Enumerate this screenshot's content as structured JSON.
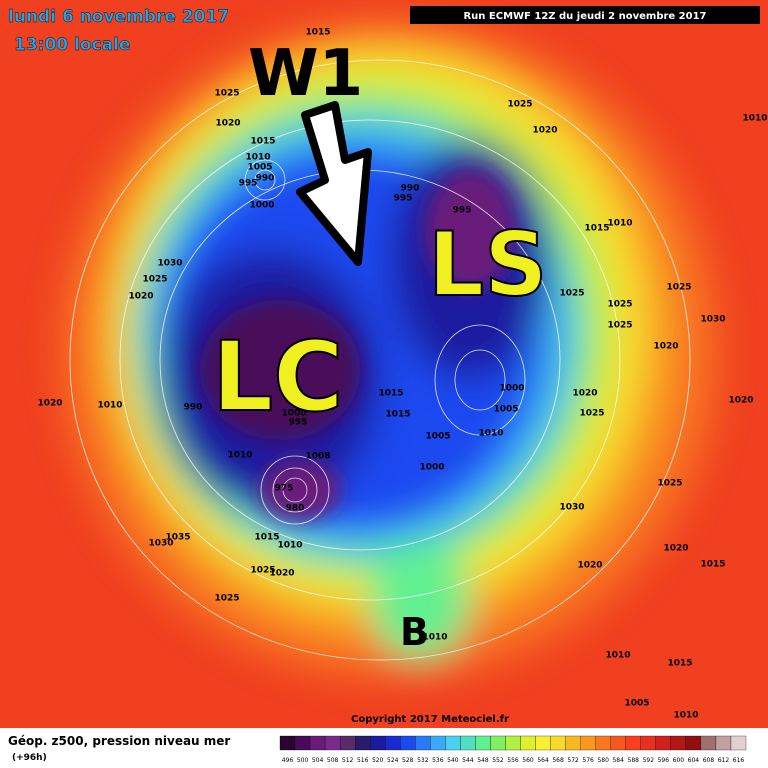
{
  "header": {
    "date": "lundi 6 novembre 2017",
    "time": "13:00 locale",
    "run": "Run ECMWF 12Z du jeudi 2 novembre 2017"
  },
  "annotations": {
    "arrow_label": "W1",
    "ls": "LS",
    "lc": "LC",
    "b": "B"
  },
  "pressure_labels": [
    1015,
    1025,
    1020,
    1015,
    1010,
    1005,
    995,
    990,
    1000,
    1025,
    1020,
    1010,
    990,
    995,
    995,
    1010,
    1015,
    1030,
    1025,
    1020,
    1025,
    1025,
    1025,
    1025,
    1030,
    1020,
    1015,
    1015,
    1020,
    1025,
    1000,
    1005,
    1010,
    1005,
    1000,
    1020,
    1010,
    990,
    1000,
    995,
    1010,
    1008,
    975,
    980,
    1030,
    1025,
    1020,
    1015,
    1035,
    1030,
    1015,
    1010,
    1025,
    1020,
    1020,
    1025,
    1010,
    1010,
    1015,
    1005,
    1010,
    1020
  ],
  "copyright": "Copyright 2017 Meteociel.fr",
  "footer": {
    "title": "Géop. z500, pression niveau mer",
    "lead": "(+96h)"
  },
  "scale": {
    "labels": [
      496,
      500,
      504,
      508,
      512,
      516,
      520,
      524,
      528,
      532,
      536,
      540,
      544,
      548,
      552,
      556,
      560,
      564,
      568,
      572,
      576,
      580,
      584,
      588,
      592,
      596,
      600,
      604,
      608,
      612,
      616
    ],
    "colors": [
      "#2a0530",
      "#4a0a5a",
      "#6a1a7a",
      "#7a2a8a",
      "#5a2a6a",
      "#2a1a6a",
      "#1a1aa0",
      "#1a2ad0",
      "#1a4af0",
      "#2a7af8",
      "#3aaaf8",
      "#4ad0f0",
      "#50e0c0",
      "#60f090",
      "#80f060",
      "#b0f040",
      "#e0f030",
      "#f8f030",
      "#f8d828",
      "#f8b820",
      "#f89820",
      "#f87820",
      "#f85820",
      "#f84020",
      "#e83020",
      "#d02020",
      "#b01818",
      "#901010",
      "#a07070",
      "#c0a0a0",
      "#e0d0d0"
    ]
  }
}
